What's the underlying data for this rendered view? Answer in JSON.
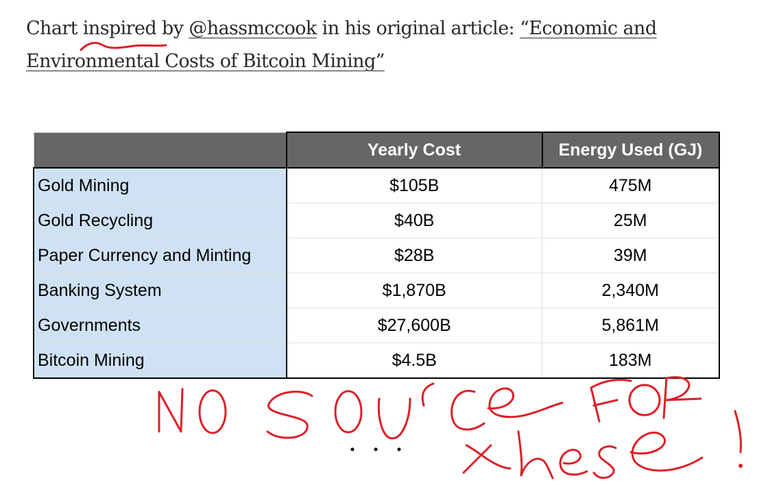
{
  "intro": {
    "text_before": "Chart inspired by ",
    "author_link": "@hassmccook",
    "text_middle": " in his original article: ",
    "article_link": "“Economic and Environmental Costs of Bitcoin Mining”"
  },
  "table": {
    "headers": [
      "",
      "Yearly Cost",
      "Energy Used (GJ)"
    ],
    "rows": [
      {
        "label": "Gold Mining",
        "yearly_cost": "$105B",
        "energy": "475M"
      },
      {
        "label": "Gold Recycling",
        "yearly_cost": "$40B",
        "energy": "25M"
      },
      {
        "label": "Paper Currency and Minting",
        "yearly_cost": "$28B",
        "energy": "39M"
      },
      {
        "label": "Banking System",
        "yearly_cost": "$1,870B",
        "energy": "2,340M"
      },
      {
        "label": "Governments",
        "yearly_cost": "$27,600B",
        "energy": "5,861M"
      },
      {
        "label": "Bitcoin Mining",
        "yearly_cost": "$4.5B",
        "energy": "183M"
      }
    ]
  },
  "annotation": {
    "text": "NO SOURCE FOR these!",
    "ink_color": "#dd1f26"
  }
}
